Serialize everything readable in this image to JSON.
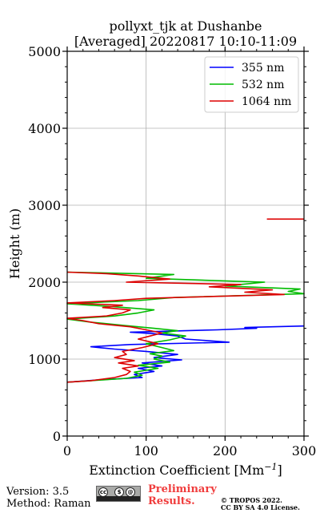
{
  "title_line1": "pollyxt_tjk at Dushanbe",
  "title_line2": "[Averaged] 20220817 10:10-11:09",
  "footer": {
    "version": "Version: 3.5",
    "method": "Method: Raman",
    "prelim_line1": "Preliminary",
    "prelim_line2": "Results.",
    "copyright_line1": "© TROPOS 2022.",
    "copyright_line2": "CC BY SA 4.0 License."
  },
  "chart_data": {
    "type": "line",
    "title": "pollyxt_tjk at Dushanbe [Averaged] 20220817 10:10-11:09",
    "xlabel": "Extinction Coefficient [Mm",
    "xlabel_sup": "−1",
    "xlabel_end": "]",
    "ylabel": "Height (m)",
    "xlim": [
      0,
      300
    ],
    "ylim": [
      0,
      5000
    ],
    "xticks": [
      0,
      100,
      200,
      300
    ],
    "yticks": [
      0,
      1000,
      2000,
      3000,
      4000,
      5000
    ],
    "grid": true,
    "legend_position": "top-right",
    "series": [
      {
        "name": "355 nm",
        "color": "#0000ff",
        "points": [
          [
            0,
            700
          ],
          [
            40,
            730
          ],
          [
            95,
            760
          ],
          [
            85,
            800
          ],
          [
            110,
            840
          ],
          [
            90,
            880
          ],
          [
            120,
            910
          ],
          [
            95,
            950
          ],
          [
            145,
            990
          ],
          [
            110,
            1020
          ],
          [
            140,
            1060
          ],
          [
            100,
            1100
          ],
          [
            60,
            1130
          ],
          [
            30,
            1160
          ],
          [
            80,
            1190
          ],
          [
            205,
            1220
          ],
          [
            150,
            1260
          ],
          [
            140,
            1300
          ],
          [
            110,
            1330
          ],
          [
            80,
            1350
          ],
          [
            190,
            1380
          ],
          [
            240,
            1400
          ],
          [
            225,
            1410
          ],
          [
            300,
            1430
          ]
        ]
      },
      {
        "name": "532 nm",
        "color": "#00bb00",
        "points": [
          [
            0,
            700
          ],
          [
            30,
            720
          ],
          [
            75,
            750
          ],
          [
            95,
            790
          ],
          [
            85,
            830
          ],
          [
            115,
            880
          ],
          [
            90,
            920
          ],
          [
            130,
            960
          ],
          [
            110,
            1000
          ],
          [
            120,
            1040
          ],
          [
            105,
            1070
          ],
          [
            135,
            1110
          ],
          [
            120,
            1150
          ],
          [
            100,
            1200
          ],
          [
            130,
            1250
          ],
          [
            150,
            1300
          ],
          [
            120,
            1340
          ],
          [
            140,
            1370
          ],
          [
            110,
            1400
          ],
          [
            70,
            1440
          ],
          [
            30,
            1480
          ],
          [
            0,
            1520
          ],
          [
            60,
            1560
          ],
          [
            90,
            1600
          ],
          [
            110,
            1640
          ],
          [
            60,
            1680
          ],
          [
            0,
            1720
          ],
          [
            90,
            1760
          ],
          [
            135,
            1800
          ],
          [
            300,
            1850
          ],
          [
            280,
            1880
          ],
          [
            295,
            1910
          ],
          [
            200,
            1950
          ],
          [
            250,
            2000
          ],
          [
            100,
            2050
          ],
          [
            135,
            2100
          ],
          [
            0,
            2130
          ]
        ]
      },
      {
        "name": "1064 nm",
        "color": "#dd0000",
        "points": [
          [
            0,
            700
          ],
          [
            30,
            720
          ],
          [
            60,
            760
          ],
          [
            75,
            800
          ],
          [
            80,
            840
          ],
          [
            70,
            880
          ],
          [
            90,
            910
          ],
          [
            65,
            950
          ],
          [
            85,
            980
          ],
          [
            60,
            1020
          ],
          [
            75,
            1060
          ],
          [
            70,
            1100
          ],
          [
            95,
            1150
          ],
          [
            115,
            1200
          ],
          [
            90,
            1260
          ],
          [
            105,
            1300
          ],
          [
            120,
            1340
          ],
          [
            100,
            1380
          ],
          [
            80,
            1420
          ],
          [
            40,
            1460
          ],
          [
            20,
            1500
          ],
          [
            0,
            1530
          ],
          [
            50,
            1560
          ],
          [
            70,
            1600
          ],
          [
            80,
            1640
          ],
          [
            45,
            1670
          ],
          [
            70,
            1700
          ],
          [
            0,
            1730
          ],
          [
            60,
            1760
          ],
          [
            100,
            1790
          ],
          [
            275,
            1840
          ],
          [
            225,
            1870
          ],
          [
            260,
            1900
          ],
          [
            180,
            1940
          ],
          [
            220,
            1970
          ],
          [
            75,
            2000
          ],
          [
            130,
            2040
          ],
          [
            90,
            2080
          ],
          [
            50,
            2110
          ],
          [
            0,
            2130
          ]
        ],
        "extra_segment": [
          [
            253,
            2820
          ],
          [
            300,
            2820
          ]
        ]
      }
    ]
  }
}
